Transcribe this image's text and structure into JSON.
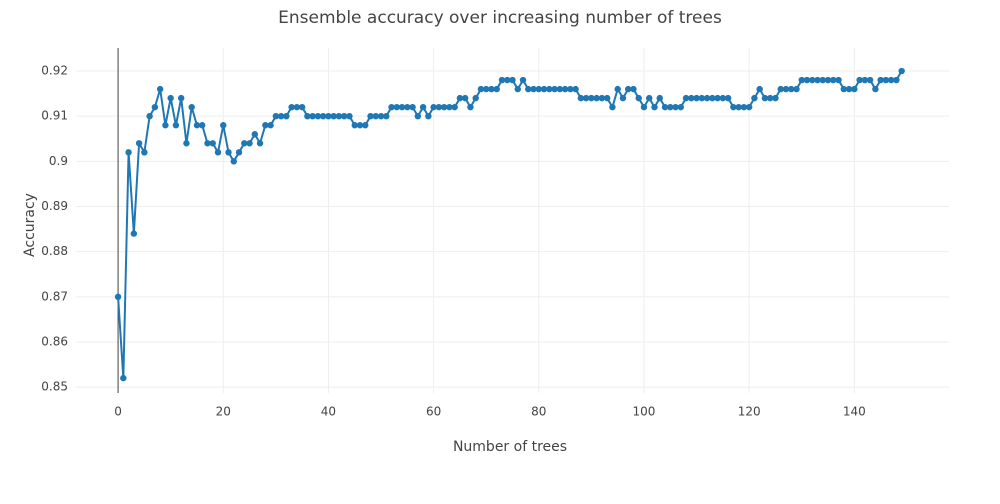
{
  "chart_data": {
    "type": "line",
    "title": "Ensemble accuracy over increasing number of trees",
    "x_label": "Number of trees",
    "y_label": "Accuracy",
    "x": [
      0,
      1,
      2,
      3,
      4,
      5,
      6,
      7,
      8,
      9,
      10,
      11,
      12,
      13,
      14,
      15,
      16,
      17,
      18,
      19,
      20,
      21,
      22,
      23,
      24,
      25,
      26,
      27,
      28,
      29,
      30,
      31,
      32,
      33,
      34,
      35,
      36,
      37,
      38,
      39,
      40,
      41,
      42,
      43,
      44,
      45,
      46,
      47,
      48,
      49,
      50,
      51,
      52,
      53,
      54,
      55,
      56,
      57,
      58,
      59,
      60,
      61,
      62,
      63,
      64,
      65,
      66,
      67,
      68,
      69,
      70,
      71,
      72,
      73,
      74,
      75,
      76,
      77,
      78,
      79,
      80,
      81,
      82,
      83,
      84,
      85,
      86,
      87,
      88,
      89,
      90,
      91,
      92,
      93,
      94,
      95,
      96,
      97,
      98,
      99,
      100,
      101,
      102,
      103,
      104,
      105,
      106,
      107,
      108,
      109,
      110,
      111,
      112,
      113,
      114,
      115,
      116,
      117,
      118,
      119,
      120,
      121,
      122,
      123,
      124,
      125,
      126,
      127,
      128,
      129,
      130,
      131,
      132,
      133,
      134,
      135,
      136,
      137,
      138,
      139,
      140,
      141,
      142,
      143,
      144,
      145,
      146,
      147,
      148,
      149
    ],
    "series": [
      {
        "name": "Accuracy",
        "color": "#1f77b4",
        "values": [
          0.87,
          0.852,
          0.902,
          0.884,
          0.904,
          0.902,
          0.91,
          0.912,
          0.916,
          0.908,
          0.914,
          0.908,
          0.914,
          0.904,
          0.912,
          0.908,
          0.908,
          0.904,
          0.904,
          0.902,
          0.908,
          0.902,
          0.9,
          0.902,
          0.904,
          0.904,
          0.906,
          0.904,
          0.908,
          0.908,
          0.91,
          0.91,
          0.91,
          0.912,
          0.912,
          0.912,
          0.91,
          0.91,
          0.91,
          0.91,
          0.91,
          0.91,
          0.91,
          0.91,
          0.91,
          0.908,
          0.908,
          0.908,
          0.91,
          0.91,
          0.91,
          0.91,
          0.912,
          0.912,
          0.912,
          0.912,
          0.912,
          0.91,
          0.912,
          0.91,
          0.912,
          0.912,
          0.912,
          0.912,
          0.912,
          0.914,
          0.914,
          0.912,
          0.914,
          0.916,
          0.916,
          0.916,
          0.916,
          0.918,
          0.918,
          0.918,
          0.916,
          0.918,
          0.916,
          0.916,
          0.916,
          0.916,
          0.916,
          0.916,
          0.916,
          0.916,
          0.916,
          0.916,
          0.914,
          0.914,
          0.914,
          0.914,
          0.914,
          0.914,
          0.912,
          0.916,
          0.914,
          0.916,
          0.916,
          0.914,
          0.912,
          0.914,
          0.912,
          0.914,
          0.912,
          0.912,
          0.912,
          0.912,
          0.914,
          0.914,
          0.914,
          0.914,
          0.914,
          0.914,
          0.914,
          0.914,
          0.914,
          0.912,
          0.912,
          0.912,
          0.912,
          0.914,
          0.916,
          0.914,
          0.914,
          0.914,
          0.916,
          0.916,
          0.916,
          0.916,
          0.918,
          0.918,
          0.918,
          0.918,
          0.918,
          0.918,
          0.918,
          0.918,
          0.916,
          0.916,
          0.916,
          0.918,
          0.918,
          0.918,
          0.916,
          0.918,
          0.918,
          0.918,
          0.918,
          0.92
        ]
      }
    ],
    "xlim": [
      -8,
      158
    ],
    "ylim": [
      0.8487,
      0.9251
    ],
    "xticks": [
      0,
      20,
      40,
      60,
      80,
      100,
      120,
      140
    ],
    "yticks": [
      0.85,
      0.86,
      0.87,
      0.88,
      0.89,
      0.9,
      0.91,
      0.92
    ],
    "grid": true,
    "zeroline": true
  }
}
